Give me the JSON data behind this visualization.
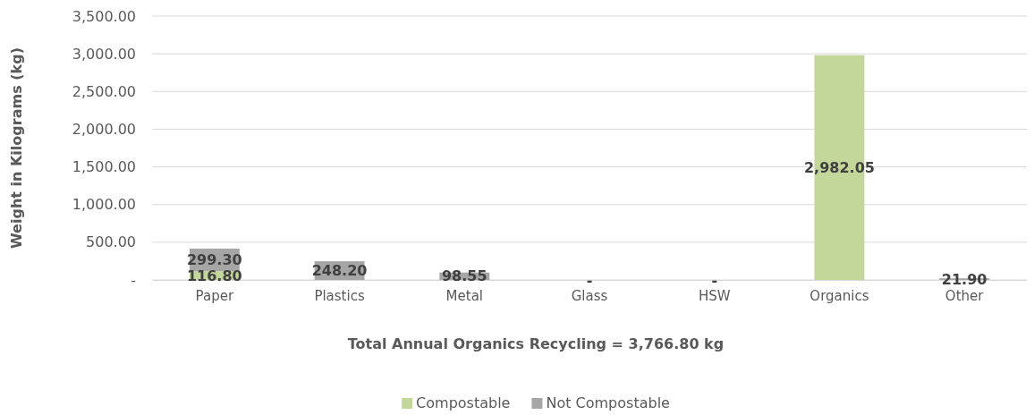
{
  "chart_data": {
    "type": "bar",
    "stacked": true,
    "xlabel": "Total Annual Organics Recycling =  3,766.80  kg",
    "ylabel": "Weight in Kilograms (kg)",
    "categories": [
      "Paper",
      "Plastics",
      "Metal",
      "Glass",
      "HSW",
      "Organics",
      "Other"
    ],
    "series": [
      {
        "name": "Compostable",
        "color": "#c4d79b",
        "values": [
          116.8,
          0,
          0,
          0,
          0,
          2982.05,
          0
        ],
        "value_labels": [
          "116.80",
          null,
          null,
          "-",
          "-",
          "2,982.05",
          null
        ]
      },
      {
        "name": "Not Compostable",
        "color": "#a6a6a6",
        "values": [
          299.3,
          248.2,
          98.55,
          0,
          0,
          0,
          21.9
        ],
        "value_labels": [
          "299.30",
          "248.20",
          "98.55",
          null,
          null,
          null,
          "21.90"
        ]
      }
    ],
    "ylim": [
      0,
      3500
    ],
    "yticks": [
      {
        "value": 0,
        "label": "-"
      },
      {
        "value": 500,
        "label": "500.00"
      },
      {
        "value": 1000,
        "label": "1,000.00"
      },
      {
        "value": 1500,
        "label": "1,500.00"
      },
      {
        "value": 2000,
        "label": "2,000.00"
      },
      {
        "value": 2500,
        "label": "2,500.00"
      },
      {
        "value": 3000,
        "label": "3,000.00"
      },
      {
        "value": 3500,
        "label": "3,500.00"
      }
    ],
    "grid": "y",
    "legend": "bottom"
  }
}
